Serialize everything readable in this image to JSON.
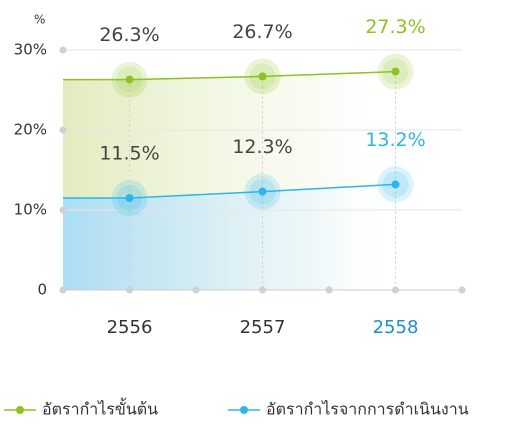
{
  "chart_data": {
    "type": "line",
    "y_unit": "%",
    "categories": [
      "2556",
      "2557",
      "2558"
    ],
    "series": [
      {
        "name": "อัตรากำไรขั้นต้น",
        "color": "#8dc21f",
        "values": [
          26.3,
          26.7,
          27.3
        ],
        "value_labels": [
          "26.3%",
          "26.7%",
          "27.3%"
        ]
      },
      {
        "name": "อัตรากำไรจากการดำเนินงาน",
        "color": "#2cb5e9",
        "values": [
          11.5,
          12.3,
          13.2
        ],
        "value_labels": [
          "11.5%",
          "12.3%",
          "13.2%"
        ]
      }
    ],
    "ylim": [
      0,
      30
    ],
    "yticks": [
      0,
      {
        "value": 10,
        "label": "10%"
      },
      {
        "value": 20,
        "label": "20%"
      },
      {
        "value": 30,
        "label": "30%"
      }
    ],
    "grid": true
  }
}
